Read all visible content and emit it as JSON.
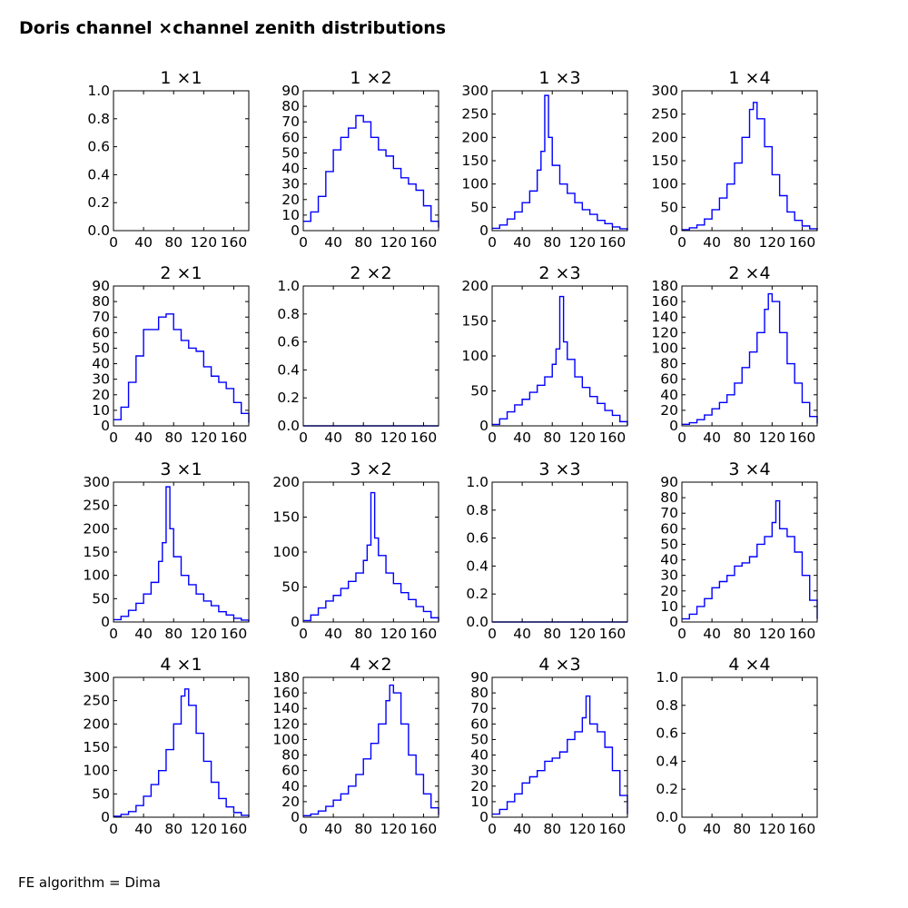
{
  "figure": {
    "title": "Doris channel ×channel zenith distributions",
    "footer": "FE algorithm = Dima",
    "line_color": "#0000ff"
  },
  "chart_data": [
    {
      "type": "line",
      "title": "1 ×1",
      "x": [],
      "y": [],
      "xlim": [
        0,
        180
      ],
      "ylim": [
        0,
        1.0
      ],
      "xticks": [
        "0",
        "40",
        "80",
        "120",
        "160"
      ],
      "yticks": [
        "0.0",
        "0.2",
        "0.4",
        "0.6",
        "0.8",
        "1.0"
      ],
      "grid": false
    },
    {
      "type": "line",
      "title": "1 ×2",
      "x": [
        0,
        10,
        20,
        30,
        40,
        50,
        60,
        70,
        80,
        90,
        100,
        110,
        120,
        130,
        140,
        150,
        160,
        170,
        180
      ],
      "y": [
        6,
        12,
        22,
        38,
        52,
        60,
        66,
        74,
        70,
        60,
        52,
        48,
        40,
        34,
        30,
        26,
        16,
        6,
        2
      ],
      "xlim": [
        0,
        180
      ],
      "ylim": [
        0,
        90
      ],
      "xticks": [
        "0",
        "40",
        "80",
        "120",
        "160"
      ],
      "yticks": [
        "0",
        "10",
        "20",
        "30",
        "40",
        "50",
        "60",
        "70",
        "80",
        "90"
      ],
      "grid": false
    },
    {
      "type": "line",
      "title": "1 ×3",
      "x": [
        0,
        10,
        20,
        30,
        40,
        50,
        60,
        65,
        70,
        75,
        80,
        90,
        100,
        110,
        120,
        130,
        140,
        150,
        160,
        170,
        180
      ],
      "y": [
        5,
        12,
        25,
        40,
        60,
        85,
        130,
        170,
        290,
        200,
        140,
        100,
        80,
        60,
        45,
        35,
        22,
        15,
        8,
        4,
        1
      ],
      "xlim": [
        0,
        180
      ],
      "ylim": [
        0,
        300
      ],
      "xticks": [
        "0",
        "40",
        "80",
        "120",
        "160"
      ],
      "yticks": [
        "0",
        "50",
        "100",
        "150",
        "200",
        "250",
        "300"
      ],
      "grid": false
    },
    {
      "type": "line",
      "title": "1 ×4",
      "x": [
        0,
        10,
        20,
        30,
        40,
        50,
        60,
        70,
        80,
        90,
        95,
        100,
        110,
        120,
        130,
        140,
        150,
        160,
        170,
        180
      ],
      "y": [
        2,
        6,
        12,
        25,
        45,
        70,
        100,
        145,
        200,
        260,
        275,
        240,
        180,
        120,
        75,
        40,
        22,
        10,
        4,
        1
      ],
      "xlim": [
        0,
        180
      ],
      "ylim": [
        0,
        300
      ],
      "xticks": [
        "0",
        "40",
        "80",
        "120",
        "160"
      ],
      "yticks": [
        "0",
        "50",
        "100",
        "150",
        "200",
        "250",
        "300"
      ],
      "grid": false
    },
    {
      "type": "line",
      "title": "2 ×1",
      "x": [
        0,
        10,
        20,
        30,
        40,
        50,
        60,
        70,
        80,
        90,
        100,
        110,
        120,
        130,
        140,
        150,
        160,
        170,
        180
      ],
      "y": [
        4,
        12,
        28,
        45,
        62,
        62,
        70,
        72,
        62,
        55,
        50,
        48,
        38,
        32,
        28,
        24,
        15,
        8,
        2
      ],
      "xlim": [
        0,
        180
      ],
      "ylim": [
        0,
        90
      ],
      "xticks": [
        "0",
        "40",
        "80",
        "120",
        "160"
      ],
      "yticks": [
        "0",
        "10",
        "20",
        "30",
        "40",
        "50",
        "60",
        "70",
        "80",
        "90"
      ],
      "grid": false
    },
    {
      "type": "line",
      "title": "2 ×2",
      "x": [
        0,
        180
      ],
      "y": [
        0,
        0
      ],
      "xlim": [
        0,
        180
      ],
      "ylim": [
        0,
        1.0
      ],
      "xticks": [
        "0",
        "40",
        "80",
        "120",
        "160"
      ],
      "yticks": [
        "0.0",
        "0.2",
        "0.4",
        "0.6",
        "0.8",
        "1.0"
      ],
      "grid": false
    },
    {
      "type": "line",
      "title": "2 ×3",
      "x": [
        0,
        10,
        20,
        30,
        40,
        50,
        60,
        70,
        80,
        85,
        90,
        95,
        100,
        110,
        120,
        130,
        140,
        150,
        160,
        170,
        180
      ],
      "y": [
        2,
        10,
        20,
        30,
        38,
        48,
        58,
        70,
        88,
        110,
        185,
        120,
        95,
        70,
        55,
        42,
        32,
        22,
        15,
        6,
        1
      ],
      "xlim": [
        0,
        180
      ],
      "ylim": [
        0,
        200
      ],
      "xticks": [
        "0",
        "40",
        "80",
        "120",
        "160"
      ],
      "yticks": [
        "0",
        "50",
        "100",
        "150",
        "200"
      ],
      "grid": false
    },
    {
      "type": "line",
      "title": "2 ×4",
      "x": [
        0,
        10,
        20,
        30,
        40,
        50,
        60,
        70,
        80,
        90,
        100,
        110,
        115,
        120,
        130,
        140,
        150,
        160,
        170,
        180
      ],
      "y": [
        2,
        4,
        8,
        14,
        22,
        30,
        40,
        55,
        75,
        95,
        120,
        150,
        170,
        160,
        120,
        80,
        55,
        30,
        12,
        3
      ],
      "xlim": [
        0,
        180
      ],
      "ylim": [
        0,
        180
      ],
      "xticks": [
        "0",
        "40",
        "80",
        "120",
        "160"
      ],
      "yticks": [
        "0",
        "20",
        "40",
        "60",
        "80",
        "100",
        "120",
        "140",
        "160",
        "180"
      ],
      "grid": false
    },
    {
      "type": "line",
      "title": "3 ×1",
      "x": [
        0,
        10,
        20,
        30,
        40,
        50,
        60,
        65,
        70,
        75,
        80,
        90,
        100,
        110,
        120,
        130,
        140,
        150,
        160,
        170,
        180
      ],
      "y": [
        5,
        12,
        25,
        40,
        60,
        85,
        130,
        170,
        290,
        200,
        140,
        100,
        80,
        60,
        45,
        35,
        22,
        15,
        8,
        4,
        1
      ],
      "xlim": [
        0,
        180
      ],
      "ylim": [
        0,
        300
      ],
      "xticks": [
        "0",
        "40",
        "80",
        "120",
        "160"
      ],
      "yticks": [
        "0",
        "50",
        "100",
        "150",
        "200",
        "250",
        "300"
      ],
      "grid": false
    },
    {
      "type": "line",
      "title": "3 ×2",
      "x": [
        0,
        10,
        20,
        30,
        40,
        50,
        60,
        70,
        80,
        85,
        90,
        95,
        100,
        110,
        120,
        130,
        140,
        150,
        160,
        170,
        180
      ],
      "y": [
        2,
        10,
        20,
        30,
        38,
        48,
        58,
        70,
        88,
        110,
        185,
        120,
        95,
        70,
        55,
        42,
        32,
        22,
        15,
        6,
        1
      ],
      "xlim": [
        0,
        180
      ],
      "ylim": [
        0,
        200
      ],
      "xticks": [
        "0",
        "40",
        "80",
        "120",
        "160"
      ],
      "yticks": [
        "0",
        "50",
        "100",
        "150",
        "200"
      ],
      "grid": false
    },
    {
      "type": "line",
      "title": "3 ×3",
      "x": [
        0,
        180
      ],
      "y": [
        0,
        0
      ],
      "xlim": [
        0,
        180
      ],
      "ylim": [
        0,
        1.0
      ],
      "xticks": [
        "0",
        "40",
        "80",
        "120",
        "160"
      ],
      "yticks": [
        "0.0",
        "0.2",
        "0.4",
        "0.6",
        "0.8",
        "1.0"
      ],
      "grid": false
    },
    {
      "type": "line",
      "title": "3 ×4",
      "x": [
        0,
        10,
        20,
        30,
        40,
        50,
        60,
        70,
        80,
        90,
        100,
        110,
        120,
        125,
        130,
        140,
        150,
        160,
        170,
        180
      ],
      "y": [
        2,
        5,
        10,
        15,
        22,
        26,
        30,
        36,
        38,
        42,
        50,
        55,
        64,
        78,
        60,
        55,
        45,
        30,
        14,
        2
      ],
      "xlim": [
        0,
        180
      ],
      "ylim": [
        0,
        90
      ],
      "xticks": [
        "0",
        "40",
        "80",
        "120",
        "160"
      ],
      "yticks": [
        "0",
        "10",
        "20",
        "30",
        "40",
        "50",
        "60",
        "70",
        "80",
        "90"
      ],
      "grid": false
    },
    {
      "type": "line",
      "title": "4 ×1",
      "x": [
        0,
        10,
        20,
        30,
        40,
        50,
        60,
        70,
        80,
        90,
        95,
        100,
        110,
        120,
        130,
        140,
        150,
        160,
        170,
        180
      ],
      "y": [
        2,
        6,
        12,
        25,
        45,
        70,
        100,
        145,
        200,
        260,
        275,
        240,
        180,
        120,
        75,
        40,
        22,
        10,
        4,
        1
      ],
      "xlim": [
        0,
        180
      ],
      "ylim": [
        0,
        300
      ],
      "xticks": [
        "0",
        "40",
        "80",
        "120",
        "160"
      ],
      "yticks": [
        "0",
        "50",
        "100",
        "150",
        "200",
        "250",
        "300"
      ],
      "grid": false
    },
    {
      "type": "line",
      "title": "4 ×2",
      "x": [
        0,
        10,
        20,
        30,
        40,
        50,
        60,
        70,
        80,
        90,
        100,
        110,
        115,
        120,
        130,
        140,
        150,
        160,
        170,
        180
      ],
      "y": [
        2,
        4,
        8,
        14,
        22,
        30,
        40,
        55,
        75,
        95,
        120,
        150,
        170,
        160,
        120,
        80,
        55,
        30,
        12,
        3
      ],
      "xlim": [
        0,
        180
      ],
      "ylim": [
        0,
        180
      ],
      "xticks": [
        "0",
        "40",
        "80",
        "120",
        "160"
      ],
      "yticks": [
        "0",
        "20",
        "40",
        "60",
        "80",
        "100",
        "120",
        "140",
        "160",
        "180"
      ],
      "grid": false
    },
    {
      "type": "line",
      "title": "4 ×3",
      "x": [
        0,
        10,
        20,
        30,
        40,
        50,
        60,
        70,
        80,
        90,
        100,
        110,
        120,
        125,
        130,
        140,
        150,
        160,
        170,
        180
      ],
      "y": [
        2,
        5,
        10,
        15,
        22,
        26,
        30,
        36,
        38,
        42,
        50,
        55,
        64,
        78,
        60,
        55,
        45,
        30,
        14,
        2
      ],
      "xlim": [
        0,
        180
      ],
      "ylim": [
        0,
        90
      ],
      "xticks": [
        "0",
        "40",
        "80",
        "120",
        "160"
      ],
      "yticks": [
        "0",
        "10",
        "20",
        "30",
        "40",
        "50",
        "60",
        "70",
        "80",
        "90"
      ],
      "grid": false
    },
    {
      "type": "line",
      "title": "4 ×4",
      "x": [],
      "y": [],
      "xlim": [
        0,
        180
      ],
      "ylim": [
        0,
        1.0
      ],
      "xticks": [
        "0",
        "40",
        "80",
        "120",
        "160"
      ],
      "yticks": [
        "0.0",
        "0.2",
        "0.4",
        "0.6",
        "0.8",
        "1.0"
      ],
      "grid": false
    }
  ]
}
